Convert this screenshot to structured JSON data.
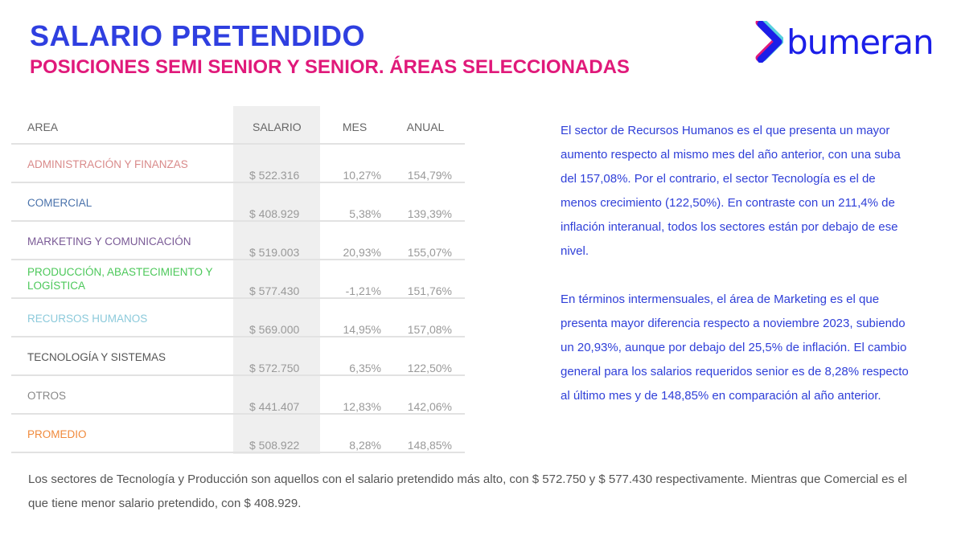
{
  "title": "SALARIO PRETENDIDO",
  "subtitle": "POSICIONES SEMI SENIOR Y SENIOR. ÁREAS SELECCIONADAS",
  "logo": "bumeran",
  "table": {
    "headers": [
      "AREA",
      "SALARIO",
      "MES",
      "ANUAL"
    ],
    "rows": [
      {
        "area": "ADMINISTRACIÓN Y FINANZAS",
        "salario": "$ 522.316",
        "mes": "10,27%",
        "anual": "154,79%",
        "color": "#d98a8a"
      },
      {
        "area": "COMERCIAL",
        "salario": "$ 408.929",
        "mes": "5,38%",
        "anual": "139,39%",
        "color": "#4a72ab"
      },
      {
        "area": "MARKETING Y COMUNICACIÓN",
        "salario": "$ 519.003",
        "mes": "20,93%",
        "anual": "155,07%",
        "color": "#7a5a96"
      },
      {
        "area": "PRODUCCIÓN, ABASTECIMIENTO Y LOGÍSTICA",
        "salario": "$ 577.430",
        "mes": "-1,21%",
        "anual": "151,76%",
        "color": "#4cc85a"
      },
      {
        "area": "RECURSOS HUMANOS",
        "salario": "$ 569.000",
        "mes": "14,95%",
        "anual": "157,08%",
        "color": "#8ccadb"
      },
      {
        "area": "TECNOLOGÍA Y SISTEMAS",
        "salario": "$ 572.750",
        "mes": "6,35%",
        "anual": "122,50%",
        "color": "#555555"
      },
      {
        "area": "OTROS",
        "salario": "$ 441.407",
        "mes": "12,83%",
        "anual": "142,06%",
        "color": "#888888"
      },
      {
        "area": "PROMEDIO",
        "salario": "$ 508.922",
        "mes": "8,28%",
        "anual": "148,85%",
        "color": "#f08a3c"
      }
    ]
  },
  "right_text": [
    "El sector de Recursos Humanos es el que presenta un mayor aumento respecto al mismo mes del año anterior, con una suba del 157,08%. Por el contrario, el sector Tecnología es el de menos crecimiento (122,50%). En contraste con un 211,4% de inflación interanual, todos los sectores están por debajo de ese nivel.",
    "En términos intermensuales, el área de Marketing es el que presenta mayor diferencia respecto a noviembre 2023, subiendo un 20,93%, aunque por debajo del 25,5% de inflación. El cambio general para los salarios requeridos senior es de 8,28% respecto al último mes y de 148,85% en comparación al año anterior."
  ],
  "bottom_text": "Los sectores de Tecnología y Producción son aquellos con el salario pretendido más alto, con $ 572.750 y $ 577.430 respectivamente. Mientras que Comercial es el que tiene menor salario pretendido, con $ 408.929."
}
